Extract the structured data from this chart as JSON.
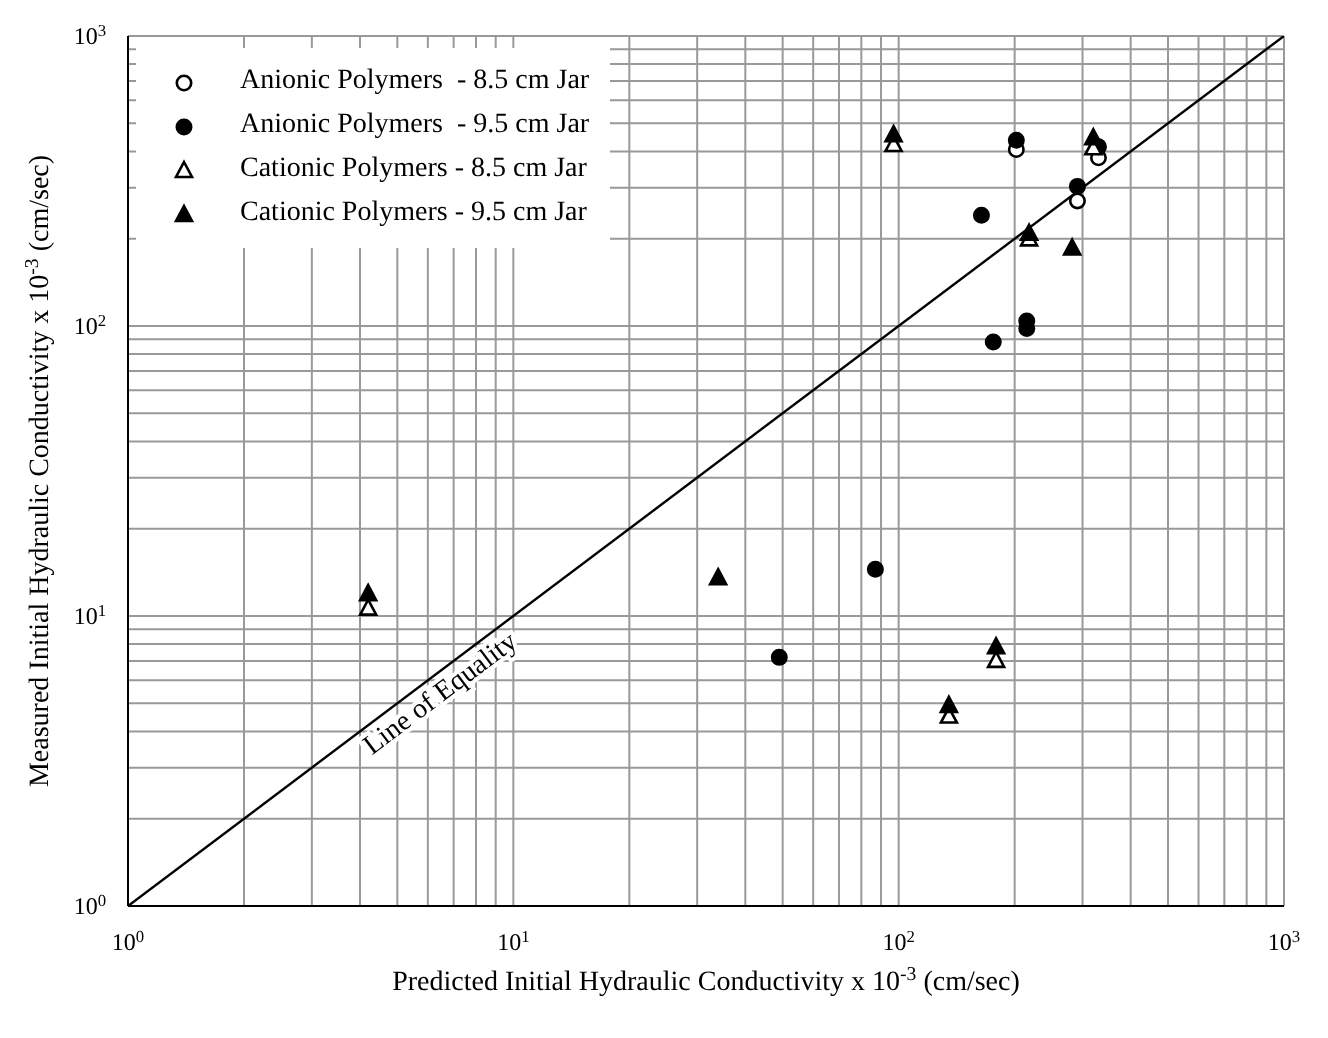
{
  "chart_data": {
    "type": "scatter",
    "xlabel": "Predicted Initial Hydraulic Conductivity x 10$^{-3}$ (cm/sec)",
    "ylabel": "Measured Initial Hydraulic Conductivity x 10$^{-3}$ (cm/sec)",
    "log": "xy",
    "grid": true,
    "legend": "top left",
    "xlim": [
      1,
      1000
    ],
    "ylim": [
      1,
      1000
    ],
    "xticks": [
      {
        "value": 1,
        "label": "10$^{0}$"
      },
      {
        "value": 2,
        "label": null
      },
      {
        "value": 3,
        "label": null
      },
      {
        "value": 4,
        "label": null
      },
      {
        "value": 5,
        "label": null
      },
      {
        "value": 6,
        "label": null
      },
      {
        "value": 7,
        "label": null
      },
      {
        "value": 8,
        "label": null
      },
      {
        "value": 9,
        "label": null
      },
      {
        "value": 10,
        "label": "10$^{1}$"
      },
      {
        "value": 20,
        "label": null
      },
      {
        "value": 30,
        "label": null
      },
      {
        "value": 40,
        "label": null
      },
      {
        "value": 50,
        "label": null
      },
      {
        "value": 60,
        "label": null
      },
      {
        "value": 70,
        "label": null
      },
      {
        "value": 80,
        "label": null
      },
      {
        "value": 90,
        "label": null
      },
      {
        "value": 100,
        "label": "10$^{2}$"
      },
      {
        "value": 200,
        "label": null
      },
      {
        "value": 300,
        "label": null
      },
      {
        "value": 400,
        "label": null
      },
      {
        "value": 500,
        "label": null
      },
      {
        "value": 600,
        "label": null
      },
      {
        "value": 700,
        "label": null
      },
      {
        "value": 800,
        "label": null
      },
      {
        "value": 900,
        "label": null
      },
      {
        "value": 1000,
        "label": "10$^{3}$"
      }
    ],
    "yticks": [
      {
        "value": 1,
        "label": "10$^{0}$"
      },
      {
        "value": 2,
        "label": null
      },
      {
        "value": 3,
        "label": null
      },
      {
        "value": 4,
        "label": null
      },
      {
        "value": 5,
        "label": null
      },
      {
        "value": 6,
        "label": null
      },
      {
        "value": 7,
        "label": null
      },
      {
        "value": 8,
        "label": null
      },
      {
        "value": 9,
        "label": null
      },
      {
        "value": 10,
        "label": "10$^{1}$"
      },
      {
        "value": 20,
        "label": null
      },
      {
        "value": 30,
        "label": null
      },
      {
        "value": 40,
        "label": null
      },
      {
        "value": 50,
        "label": null
      },
      {
        "value": 60,
        "label": null
      },
      {
        "value": 70,
        "label": null
      },
      {
        "value": 80,
        "label": null
      },
      {
        "value": 90,
        "label": null
      },
      {
        "value": 100,
        "label": "10$^{2}$"
      },
      {
        "value": 200,
        "label": null
      },
      {
        "value": 300,
        "label": null
      },
      {
        "value": 400,
        "label": null
      },
      {
        "value": 500,
        "label": null
      },
      {
        "value": 600,
        "label": null
      },
      {
        "value": 700,
        "label": null
      },
      {
        "value": 800,
        "label": null
      },
      {
        "value": 900,
        "label": null
      },
      {
        "value": 1000,
        "label": "10$^{3}$"
      }
    ],
    "series": [
      {
        "name": "Anionic Polymers  - 8.5 cm Jar",
        "marker": "circle",
        "color": "#ffffff",
        "x": [
          202,
          330,
          291
        ],
        "values": [
          406,
          380,
          270
        ]
      },
      {
        "name": "Anionic Polymers  - 9.5 cm Jar",
        "marker": "circle",
        "color": "#000000",
        "x": [
          202,
          330,
          291,
          164,
          215,
          215,
          176,
          49,
          87
        ],
        "values": [
          437,
          415,
          303,
          241,
          104,
          98,
          88,
          7.2,
          14.5
        ]
      },
      {
        "name": "Cationic Polymers - 8.5 cm Jar",
        "marker": "triangle",
        "color": "#ffffff",
        "x": [
          4.2,
          135,
          179,
          97,
          320,
          218
        ],
        "values": [
          10.6,
          4.5,
          7.0,
          421,
          410,
          199
        ]
      },
      {
        "name": "Cationic Polymers - 9.5 cm Jar",
        "marker": "triangle",
        "color": "#000000",
        "x": [
          4.2,
          135,
          179,
          97,
          320,
          218,
          282,
          34
        ],
        "values": [
          11.9,
          4.9,
          7.8,
          455,
          444,
          208,
          185,
          13.5
        ]
      },
      {
        "name": "Line of Equality",
        "type": "line",
        "marker": "none",
        "line_style": "solid",
        "color": "#000000",
        "x": [
          1,
          1000
        ],
        "values": [
          1,
          1000
        ]
      }
    ]
  }
}
